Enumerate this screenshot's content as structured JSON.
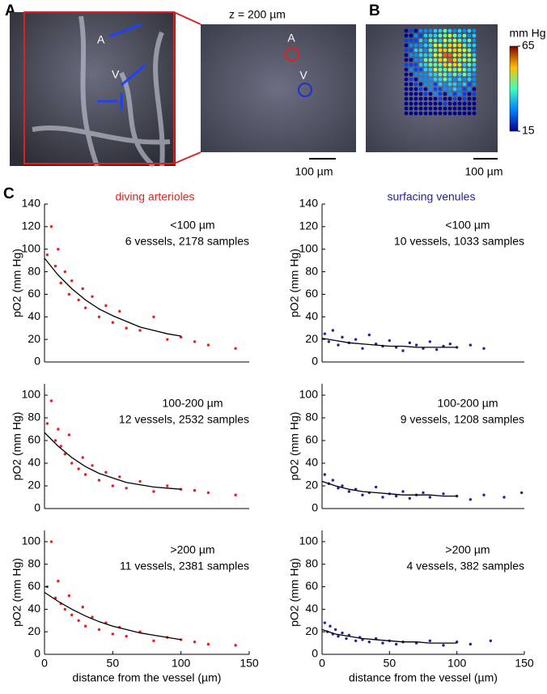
{
  "panels": {
    "a": {
      "label": "A",
      "artery_label": "A",
      "vein_label": "V",
      "depth": "z = 200 µm",
      "scale_bar": "100 µm"
    },
    "b": {
      "label": "B",
      "scale_bar": "100 µm",
      "colorbar": {
        "title": "mm Hg",
        "lim": [
          15,
          65
        ],
        "ticks": [
          65,
          15
        ]
      }
    },
    "c": {
      "label": "C"
    }
  },
  "chart_data": [
    {
      "type": "scatter",
      "title": "diving arterioles",
      "annotations": [
        "<100 µm",
        "6 vessels, 2178 samples"
      ],
      "ylabel": "pO2 (mm Hg)",
      "xlim": [
        0,
        150
      ],
      "ylim": [
        0,
        140
      ],
      "yticks": [
        0,
        20,
        40,
        60,
        80,
        100,
        120,
        140
      ],
      "series": [
        {
          "color": "#e8201a",
          "x": [
            2,
            5,
            8,
            10,
            12,
            15,
            18,
            20,
            25,
            28,
            30,
            35,
            40,
            45,
            50,
            55,
            60,
            70,
            80,
            90,
            100,
            110,
            120,
            140
          ],
          "values": [
            95,
            120,
            85,
            100,
            70,
            80,
            60,
            72,
            55,
            65,
            48,
            58,
            40,
            50,
            35,
            45,
            30,
            28,
            40,
            20,
            22,
            18,
            15,
            12
          ]
        }
      ],
      "fit": {
        "x": [
          0,
          10,
          20,
          30,
          40,
          50,
          60,
          70,
          80,
          90,
          100
        ],
        "values": [
          92,
          77,
          65,
          55,
          47,
          41,
          36,
          31,
          28,
          25,
          23
        ]
      }
    },
    {
      "type": "scatter",
      "title": "surfacing venules",
      "annotations": [
        "<100 µm",
        "10 vessels, 1033 samples"
      ],
      "ylabel": "pO2 (mm Hg)",
      "xlim": [
        0,
        150
      ],
      "ylim": [
        0,
        140
      ],
      "yticks": [
        0,
        20,
        40,
        60,
        80,
        100,
        120,
        140
      ],
      "series": [
        {
          "color": "#23239a",
          "x": [
            2,
            5,
            8,
            12,
            15,
            20,
            25,
            30,
            35,
            40,
            45,
            50,
            55,
            60,
            65,
            70,
            75,
            80,
            85,
            90,
            95,
            100,
            110,
            120
          ],
          "values": [
            25,
            18,
            28,
            15,
            22,
            17,
            20,
            12,
            24,
            16,
            14,
            19,
            13,
            10,
            17,
            15,
            12,
            18,
            11,
            14,
            16,
            13,
            15,
            12
          ]
        }
      ],
      "fit": {
        "x": [
          0,
          10,
          20,
          30,
          40,
          50,
          60,
          70,
          80,
          90,
          100
        ],
        "values": [
          21,
          19,
          17,
          16,
          15,
          14,
          14,
          13,
          13,
          13,
          13
        ]
      }
    },
    {
      "type": "scatter",
      "annotations": [
        "100-200 µm",
        "12 vessels, 2532 samples"
      ],
      "ylabel": "pO2 (mm Hg)",
      "xlim": [
        0,
        150
      ],
      "ylim": [
        0,
        110
      ],
      "yticks": [
        0,
        20,
        40,
        60,
        80,
        100
      ],
      "series": [
        {
          "color": "#e8201a",
          "x": [
            2,
            5,
            8,
            10,
            12,
            15,
            18,
            20,
            25,
            28,
            30,
            35,
            40,
            45,
            50,
            55,
            60,
            70,
            80,
            90,
            100,
            110,
            120,
            140
          ],
          "values": [
            75,
            95,
            60,
            70,
            55,
            48,
            65,
            40,
            35,
            45,
            30,
            38,
            25,
            32,
            20,
            28,
            18,
            24,
            15,
            20,
            17,
            16,
            14,
            12
          ]
        }
      ],
      "fit": {
        "x": [
          0,
          10,
          20,
          30,
          40,
          50,
          60,
          70,
          80,
          90,
          100
        ],
        "values": [
          67,
          55,
          45,
          37,
          31,
          27,
          23,
          21,
          19,
          18,
          17
        ]
      }
    },
    {
      "type": "scatter",
      "annotations": [
        "100-200 µm",
        "9 vessels, 1208 samples"
      ],
      "ylabel": "pO2 (mm Hg)",
      "xlim": [
        0,
        150
      ],
      "ylim": [
        0,
        110
      ],
      "yticks": [
        0,
        20,
        40,
        60,
        80,
        100
      ],
      "series": [
        {
          "color": "#23239a",
          "x": [
            2,
            5,
            8,
            12,
            15,
            20,
            25,
            30,
            35,
            40,
            45,
            50,
            55,
            60,
            65,
            70,
            75,
            80,
            90,
            100,
            110,
            120,
            135,
            148
          ],
          "values": [
            30,
            22,
            25,
            18,
            20,
            15,
            17,
            12,
            14,
            19,
            10,
            13,
            11,
            15,
            9,
            12,
            14,
            10,
            13,
            11,
            8,
            12,
            10,
            14
          ]
        }
      ],
      "fit": {
        "x": [
          0,
          10,
          20,
          30,
          40,
          50,
          60,
          70,
          80,
          90,
          100
        ],
        "values": [
          24,
          20,
          17,
          15,
          14,
          13,
          12,
          12,
          12,
          11,
          11
        ]
      }
    },
    {
      "type": "scatter",
      "annotations": [
        ">200 µm",
        "11 vessels, 2381 samples"
      ],
      "ylabel": "pO2 (mm Hg)",
      "xlabel": "distance from the vessel (µm)",
      "xlim": [
        0,
        150
      ],
      "xticks": [
        0,
        50,
        100,
        150
      ],
      "ylim": [
        0,
        110
      ],
      "yticks": [
        0,
        20,
        40,
        60,
        80,
        100
      ],
      "series": [
        {
          "color": "#e8201a",
          "x": [
            2,
            5,
            8,
            10,
            12,
            15,
            18,
            20,
            25,
            28,
            30,
            35,
            40,
            45,
            50,
            55,
            60,
            70,
            80,
            90,
            100,
            110,
            120,
            140
          ],
          "values": [
            60,
            100,
            50,
            65,
            45,
            40,
            52,
            35,
            30,
            42,
            25,
            33,
            22,
            28,
            18,
            24,
            16,
            20,
            12,
            15,
            13,
            11,
            9,
            8
          ]
        }
      ],
      "fit": {
        "x": [
          0,
          10,
          20,
          30,
          40,
          50,
          60,
          70,
          80,
          90,
          100
        ],
        "values": [
          55,
          47,
          40,
          34,
          29,
          25,
          22,
          19,
          17,
          15,
          13
        ]
      }
    },
    {
      "type": "scatter",
      "annotations": [
        ">200 µm",
        "4 vessels, 382 samples"
      ],
      "ylabel": "pO2 (mm Hg)",
      "xlabel": "distance from the vessel (µm)",
      "xlim": [
        0,
        150
      ],
      "xticks": [
        0,
        50,
        100,
        150
      ],
      "ylim": [
        0,
        110
      ],
      "yticks": [
        0,
        20,
        40,
        60,
        80,
        100
      ],
      "series": [
        {
          "color": "#23239a",
          "x": [
            2,
            4,
            6,
            8,
            10,
            12,
            15,
            18,
            20,
            25,
            28,
            30,
            35,
            40,
            45,
            50,
            55,
            60,
            70,
            80,
            90,
            100,
            110,
            125
          ],
          "values": [
            28,
            20,
            25,
            18,
            22,
            16,
            19,
            14,
            17,
            12,
            15,
            13,
            11,
            14,
            10,
            12,
            9,
            11,
            10,
            12,
            8,
            11,
            9,
            12
          ]
        }
      ],
      "fit": {
        "x": [
          0,
          10,
          20,
          30,
          40,
          50,
          60,
          70,
          80,
          90,
          100
        ],
        "values": [
          22,
          18,
          16,
          14,
          13,
          12,
          11,
          11,
          10,
          10,
          10
        ]
      }
    }
  ]
}
